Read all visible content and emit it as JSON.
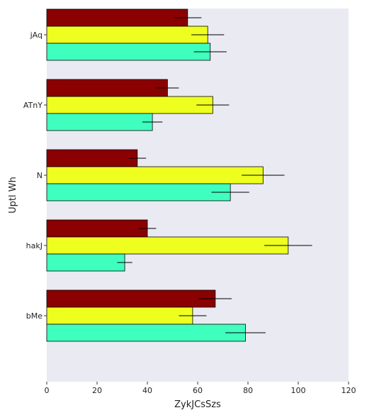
{
  "chart_data": {
    "type": "bar",
    "orientation": "horizontal",
    "xlabel": "ZykJCsSzs",
    "ylabel": "Uptl Wh",
    "xlim": [
      0,
      120
    ],
    "xticks": [
      0,
      20,
      40,
      60,
      80,
      100,
      120
    ],
    "grid": false,
    "categories": [
      "jAq",
      "ATnY",
      "N",
      "hakJ",
      "bMe"
    ],
    "series": [
      {
        "color": "#8b0000",
        "values": [
          56,
          48,
          36,
          40,
          67
        ],
        "errors": [
          5.5,
          4.5,
          3.5,
          3.5,
          6.5
        ]
      },
      {
        "color": "#eeff1f",
        "values": [
          64,
          66,
          86,
          96,
          58
        ],
        "errors": [
          6.5,
          6.5,
          8.5,
          9.5,
          5.5
        ]
      },
      {
        "color": "#3fffbe",
        "values": [
          65,
          42,
          73,
          31,
          79
        ],
        "errors": [
          6.5,
          4,
          7.5,
          3,
          8
        ]
      }
    ],
    "plot_background": "#eaeaf2",
    "edge_color": "#000000"
  }
}
